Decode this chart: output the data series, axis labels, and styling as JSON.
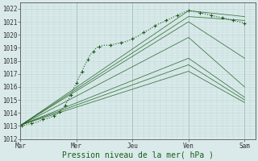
{
  "xlabel": "Pression niveau de la mer( hPa )",
  "ylim": [
    1012,
    1022.5
  ],
  "xlim": [
    0,
    4.2
  ],
  "yticks": [
    1012,
    1013,
    1014,
    1015,
    1016,
    1017,
    1018,
    1019,
    1020,
    1021,
    1022
  ],
  "xtick_labels": [
    "Mar",
    "Mer",
    "Jeu",
    "Ven",
    "Sam"
  ],
  "xtick_pos": [
    0,
    1,
    2,
    3,
    4
  ],
  "bg_color": "#daeaea",
  "grid_color": "#b8d4d4",
  "line_color": "#1a5c1a",
  "fig_bg": "#daeaea",
  "fan_lines": [
    {
      "x": [
        0.02,
        3.0,
        4.0
      ],
      "y": [
        1013.1,
        1021.85,
        1021.4
      ]
    },
    {
      "x": [
        0.02,
        3.0,
        4.0
      ],
      "y": [
        1013.1,
        1021.4,
        1021.1
      ]
    },
    {
      "x": [
        0.02,
        3.0,
        4.0
      ],
      "y": [
        1013.1,
        1021.0,
        1018.2
      ]
    },
    {
      "x": [
        0.02,
        3.0,
        4.0
      ],
      "y": [
        1013.1,
        1019.8,
        1016.0
      ]
    },
    {
      "x": [
        0.02,
        3.0,
        4.0
      ],
      "y": [
        1013.1,
        1018.2,
        1015.2
      ]
    },
    {
      "x": [
        0.02,
        3.0,
        4.0
      ],
      "y": [
        1013.1,
        1017.7,
        1015.0
      ]
    },
    {
      "x": [
        0.02,
        3.0,
        4.0
      ],
      "y": [
        1013.1,
        1017.2,
        1014.8
      ]
    }
  ],
  "obs_x": [
    0.02,
    0.1,
    0.2,
    0.3,
    0.4,
    0.5,
    0.6,
    0.65,
    0.7,
    0.75,
    0.8,
    0.85,
    0.9,
    0.95,
    1.0,
    1.05,
    1.1,
    1.15,
    1.2,
    1.25,
    1.3,
    1.35,
    1.4,
    1.5,
    1.6,
    1.7,
    1.8,
    1.9,
    2.0,
    2.1,
    2.2,
    2.3,
    2.4,
    2.5,
    2.6,
    2.7,
    2.8,
    2.9,
    3.0,
    3.1,
    3.2,
    3.3,
    3.4,
    3.5,
    3.6,
    3.7,
    3.8,
    3.9,
    4.0
  ],
  "obs_y": [
    1013.0,
    1013.1,
    1013.2,
    1013.3,
    1013.5,
    1013.6,
    1013.8,
    1013.9,
    1014.1,
    1014.3,
    1014.6,
    1015.0,
    1015.4,
    1015.9,
    1016.3,
    1016.8,
    1017.2,
    1017.7,
    1018.1,
    1018.5,
    1018.7,
    1019.0,
    1019.1,
    1019.2,
    1019.2,
    1019.3,
    1019.4,
    1019.5,
    1019.7,
    1019.9,
    1020.2,
    1020.4,
    1020.7,
    1020.9,
    1021.1,
    1021.3,
    1021.5,
    1021.7,
    1021.85,
    1021.8,
    1021.7,
    1021.6,
    1021.5,
    1021.4,
    1021.3,
    1021.2,
    1021.1,
    1021.0,
    1020.9
  ],
  "xlabel_color": "#1a5c1a",
  "xlabel_fontsize": 7,
  "tick_fontsize": 5.5
}
